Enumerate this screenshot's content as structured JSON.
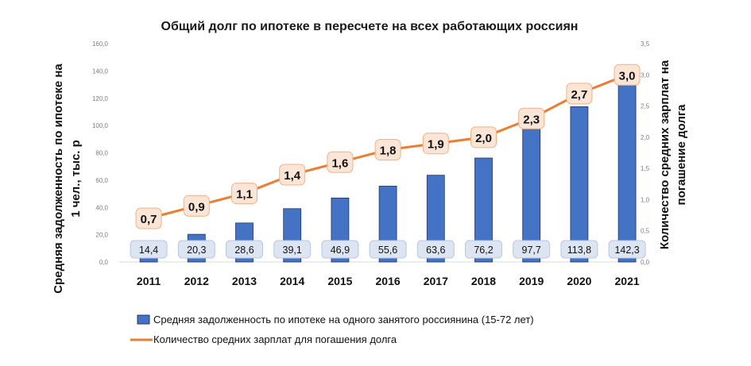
{
  "chart_data": {
    "type": "bar",
    "title": "Общий долг по ипотеке в пересчете на всех работающих россиян",
    "categories": [
      "2011",
      "2012",
      "2013",
      "2014",
      "2015",
      "2016",
      "2017",
      "2018",
      "2019",
      "2020",
      "2021"
    ],
    "series": [
      {
        "name": "Средняя задолженность по ипотеке на одного занятого россиянина (15-72 лет)",
        "type": "bar",
        "axis": "left",
        "color": "#4472c4",
        "values": [
          14.4,
          20.3,
          28.6,
          39.1,
          46.9,
          55.6,
          63.6,
          76.2,
          97.7,
          113.8,
          142.3
        ],
        "labels": [
          "14,4",
          "20,3",
          "28,6",
          "39,1",
          "46,9",
          "55,6",
          "63,6",
          "76,2",
          "97,7",
          "113,8",
          "142,3"
        ]
      },
      {
        "name": "Количество средних зарплат для погашения долга",
        "type": "line",
        "axis": "right",
        "color": "#ed7d31",
        "values": [
          0.7,
          0.9,
          1.1,
          1.4,
          1.6,
          1.8,
          1.9,
          2.0,
          2.3,
          2.7,
          3.0
        ],
        "labels": [
          "0,7",
          "0,9",
          "1,1",
          "1,4",
          "1,6",
          "1,8",
          "1,9",
          "2,0",
          "2,3",
          "2,7",
          "3,0"
        ]
      }
    ],
    "y_left": {
      "label": "Средняя задолженность по ипотеке на 1 чел., тыс. р",
      "label_lines": [
        "Средняя задолженность по ипотеке на",
        "1 чел., тыс. р"
      ],
      "ylim": [
        0,
        160
      ],
      "ticks": [
        0,
        20,
        40,
        60,
        80,
        100,
        120,
        140,
        160
      ],
      "tick_labels": [
        "0,0",
        "20,0",
        "40,0",
        "60,0",
        "80,0",
        "100,0",
        "120,0",
        "140,0",
        "160,0"
      ]
    },
    "y_right": {
      "label": "Количество средних зарплат на погашение долга",
      "label_lines": [
        "Количество средних зарплат на",
        "погашение долга"
      ],
      "ylim": [
        0,
        3.5
      ],
      "ticks": [
        0,
        0.5,
        1,
        1.5,
        2,
        2.5,
        3,
        3.5
      ],
      "tick_labels": [
        "0,0",
        "0,5",
        "1,0",
        "1,5",
        "2,0",
        "2,5",
        "3,0",
        "3,5"
      ]
    },
    "grid": false,
    "legend_position": "bottom"
  }
}
